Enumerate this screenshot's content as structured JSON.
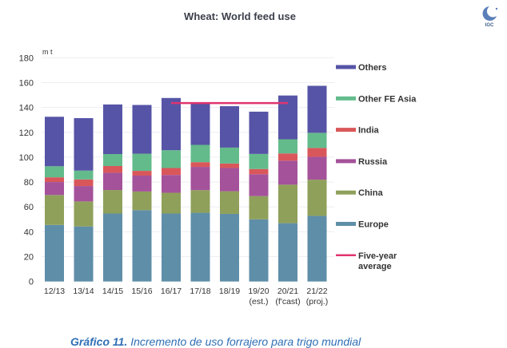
{
  "chart_data": {
    "type": "bar",
    "stacked": true,
    "title": "Wheat: World feed use",
    "ylabel": "m t",
    "xlabel": "",
    "ylim": [
      0,
      180
    ],
    "yticks": [
      0,
      20,
      40,
      60,
      80,
      100,
      120,
      140,
      160,
      180
    ],
    "grid": true,
    "legend_position": "right",
    "categories": [
      "12/13",
      "13/14",
      "14/15",
      "15/16",
      "16/17",
      "17/18",
      "18/19",
      "19/20",
      "20/21",
      "21/22"
    ],
    "category_sublabels": [
      "",
      "",
      "",
      "",
      "",
      "",
      "",
      "(est.)",
      "(f'cast)",
      "(proj.)"
    ],
    "series": [
      {
        "name": "Europe",
        "color": "#5f8ea8",
        "values": [
          45.5,
          44.3,
          54.7,
          57.4,
          54.7,
          55.3,
          54.4,
          50.0,
          46.9,
          52.8
        ]
      },
      {
        "name": "China",
        "color": "#8fa05a",
        "values": [
          24.1,
          20.1,
          18.9,
          15.0,
          16.7,
          18.2,
          18.2,
          18.7,
          31.0,
          29.1
        ]
      },
      {
        "name": "Russia",
        "color": "#a4529a",
        "values": [
          10.4,
          12.4,
          13.9,
          12.8,
          14.3,
          18.7,
          18.7,
          17.6,
          19.3,
          18.4
        ]
      },
      {
        "name": "India",
        "color": "#d9575a",
        "values": [
          3.8,
          5.3,
          5.4,
          3.8,
          5.6,
          3.8,
          3.6,
          4.2,
          5.8,
          7.1
        ]
      },
      {
        "name": "Other FE Asia",
        "color": "#63bb8b",
        "values": [
          8.9,
          7.1,
          9.6,
          13.8,
          14.3,
          13.9,
          12.8,
          12.1,
          11.4,
          12.2
        ]
      },
      {
        "name": "Others",
        "color": "#5654a6",
        "values": [
          39.8,
          42.2,
          39.9,
          39.2,
          42.0,
          34.1,
          33.3,
          34.0,
          35.2,
          37.8
        ]
      }
    ],
    "overlay_line": {
      "name": "Five-year average",
      "legend_label": [
        "Five-year",
        "average"
      ],
      "color": "#e0346f",
      "value": 143.5,
      "from_category": "16/17",
      "to_category": "20/21"
    },
    "legend_order": [
      "Others",
      "Other FE Asia",
      "India",
      "Russia",
      "China",
      "Europe",
      "Five-year average"
    ]
  },
  "logo": {
    "label": "IGC",
    "icon": "igc-globe-logo"
  },
  "caption": {
    "bold": "Gráfico 11.",
    "text": " Incremento de uso forrajero para trigo mundial"
  }
}
